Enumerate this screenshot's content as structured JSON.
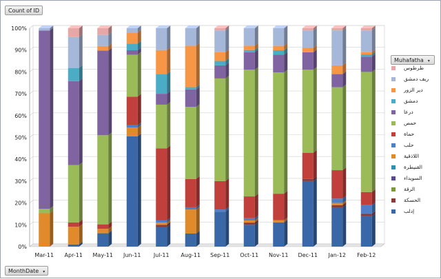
{
  "ui": {
    "value_field_label": "Count of ID",
    "legend_field_label": "Muhafatha",
    "axis_field_label": "MonthDate",
    "dropdown_glyph": "▾"
  },
  "chart_data": {
    "type": "bar",
    "stacked": "percent",
    "categories": [
      "Mar-11",
      "Apr-11",
      "May-11",
      "Jun-11",
      "Jul-11",
      "Aug-11",
      "Sep-11",
      "Oct-11",
      "Nov-11",
      "Dec-11",
      "Jan-12",
      "Feb-12"
    ],
    "y_ticks": [
      "0%",
      "10%",
      "20%",
      "30%",
      "40%",
      "50%",
      "60%",
      "70%",
      "80%",
      "90%",
      "100%"
    ],
    "ylim": [
      0,
      100
    ],
    "grid": true,
    "legend_placement": "right",
    "series": [
      {
        "name": "إدلب",
        "color": "#3a67a7",
        "values": [
          0,
          1,
          6,
          50,
          9,
          6,
          16,
          10,
          11,
          30,
          18,
          14
        ]
      },
      {
        "name": "الحسكة",
        "color": "#8c3a37",
        "values": [
          0,
          0,
          0,
          0,
          1,
          0,
          0,
          1,
          0,
          1,
          1,
          1
        ]
      },
      {
        "name": "الرقة",
        "color": "#7a9a3a",
        "values": [
          0,
          0,
          0,
          0,
          0,
          0,
          0,
          0,
          0,
          0,
          0,
          0
        ]
      },
      {
        "name": "السويداء",
        "color": "#5a4a8a",
        "values": [
          0,
          0,
          0,
          0,
          0,
          0,
          0,
          0,
          0,
          0,
          0,
          0
        ]
      },
      {
        "name": "القنيطرة",
        "color": "#2f8fb0",
        "values": [
          0,
          0,
          0,
          0,
          0,
          0,
          0,
          0,
          0,
          0,
          0,
          0
        ]
      },
      {
        "name": "اللاذقية",
        "color": "#e08a2c",
        "values": [
          15,
          8,
          2,
          4,
          1,
          11,
          0,
          1,
          1,
          0,
          1,
          0
        ]
      },
      {
        "name": "حلب",
        "color": "#4f7fc6",
        "values": [
          0,
          0,
          0,
          1,
          1,
          1,
          1,
          1,
          0,
          0,
          2,
          4
        ]
      },
      {
        "name": "حماة",
        "color": "#c2403c",
        "values": [
          0,
          2,
          2,
          13,
          33,
          13,
          13,
          10,
          12,
          12,
          13,
          6
        ]
      },
      {
        "name": "حمص",
        "color": "#9bbb59",
        "values": [
          2,
          26,
          40,
          19,
          20,
          33,
          47,
          58,
          55,
          38,
          38,
          55
        ]
      },
      {
        "name": "درعا",
        "color": "#8064a2",
        "values": [
          80,
          38,
          38,
          2,
          5,
          8,
          6,
          8,
          8,
          8,
          6,
          7
        ]
      },
      {
        "name": "دمشق",
        "color": "#4bacc6",
        "values": [
          0,
          6,
          0,
          3,
          9,
          1,
          2,
          1,
          2,
          0,
          0,
          1
        ]
      },
      {
        "name": "دير الزور",
        "color": "#f79646",
        "values": [
          0,
          0,
          2,
          5,
          11,
          19,
          4,
          2,
          2,
          2,
          4,
          1
        ]
      },
      {
        "name": "ريف دمشق",
        "color": "#a5b8d9",
        "values": [
          1,
          14,
          5,
          2,
          10,
          8,
          10,
          8,
          8,
          8,
          16,
          10
        ]
      },
      {
        "name": "طرطوس",
        "color": "#e6a7a7",
        "values": [
          0,
          4,
          3,
          0,
          0,
          0,
          1,
          0,
          0,
          1,
          1,
          1
        ]
      }
    ]
  }
}
